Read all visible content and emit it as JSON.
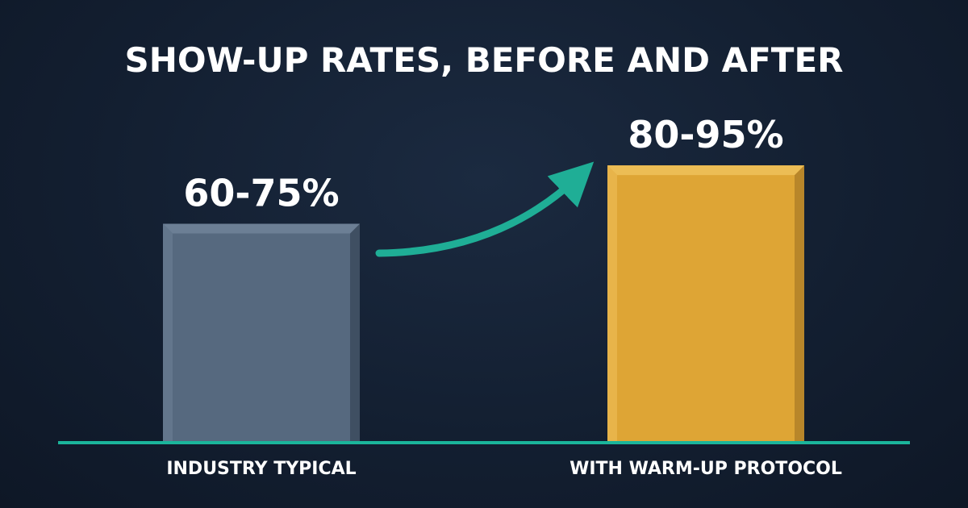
{
  "chart_data": {
    "type": "bar",
    "title": "SHOW-UP RATES, BEFORE AND AFTER",
    "categories": [
      "INDUSTRY TYPICAL",
      "WITH WARM-UP PROTOCOL"
    ],
    "values": [
      75,
      95
    ],
    "ranges": [
      [
        60,
        75
      ],
      [
        80,
        95
      ]
    ],
    "value_labels": [
      "60-75%",
      "80-95%"
    ],
    "ylim": [
      0,
      100
    ],
    "grid": false,
    "legend": "none",
    "colors": {
      "before_bar": "#56697f",
      "after_bar": "#dea535",
      "baseline": "#1bb59b",
      "arrow": "#1fae96"
    },
    "annotations": [
      {
        "type": "arrow",
        "from": "INDUSTRY TYPICAL",
        "to": "WITH WARM-UP PROTOCOL",
        "icon": "trend-up-arrow-icon"
      }
    ]
  }
}
